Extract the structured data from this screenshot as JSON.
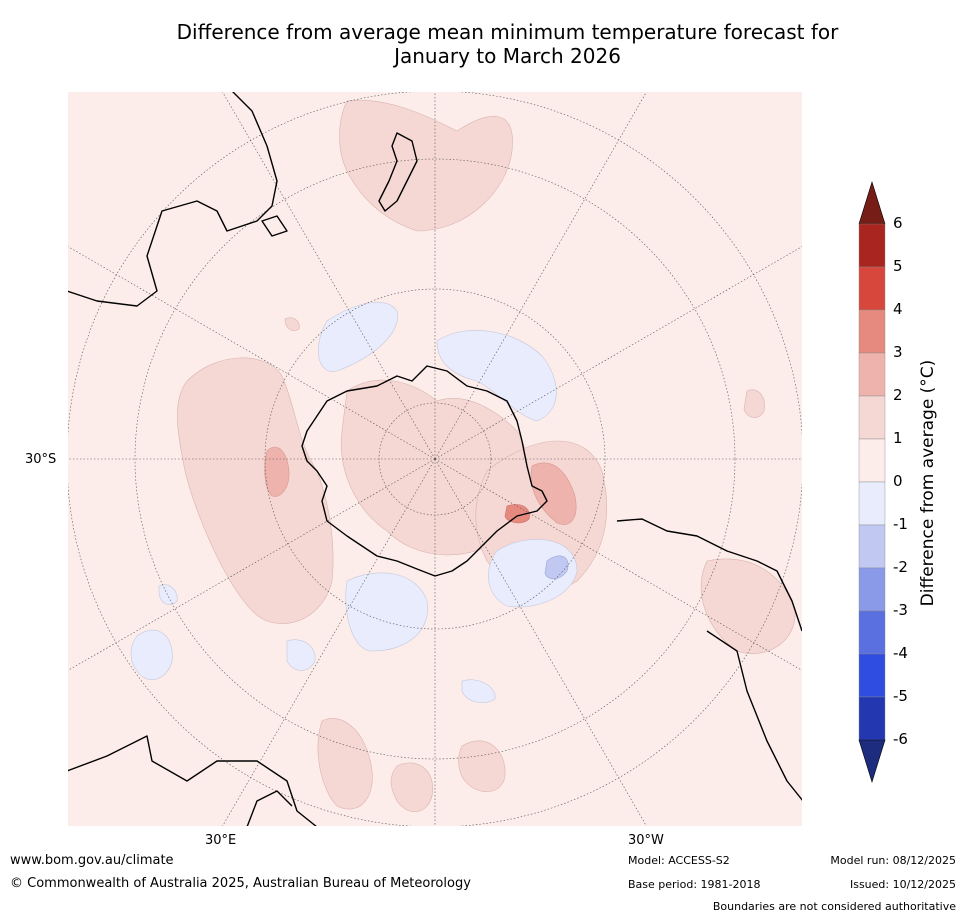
{
  "title": {
    "line1": "Difference from average mean minimum temperature forecast for",
    "line2": "January to March 2026"
  },
  "map": {
    "projection": "south-polar-stereographic",
    "graticule_labels": {
      "lat": "30°S",
      "lon_east": "30°E",
      "lon_west": "30°W"
    },
    "ocean_color": "#fcecea",
    "coast_color": "#000000"
  },
  "colorbar": {
    "title": "Difference from average ($^\\circ$C)",
    "title_display": "Difference from average (°C)",
    "ticks": [
      "6",
      "5",
      "4",
      "3",
      "2",
      "1",
      "0",
      "-1",
      "-2",
      "-3",
      "-4",
      "-5",
      "-6"
    ],
    "colors": [
      "#a9251f",
      "#d7473c",
      "#e68a80",
      "#eeb3ac",
      "#f5d7d3",
      "#fcecea",
      "#e8ecfc",
      "#c1c9f2",
      "#8a9ae9",
      "#5a6fe0",
      "#2f4de0",
      "#2338b0"
    ],
    "extend_high_color": "#761d17",
    "extend_low_color": "#1e2c80"
  },
  "footer": {
    "website": "www.bom.gov.au/climate",
    "copyright": "© Commonwealth of Australia 2025, Australian Bureau of Meteorology",
    "model": "Model: ACCESS-S2",
    "base_period": "Base period: 1981-2018",
    "model_run": "Model run: 08/12/2025",
    "issued": "Issued: 10/12/2025",
    "disclaimer": "Boundaries are not considered authoritative"
  }
}
